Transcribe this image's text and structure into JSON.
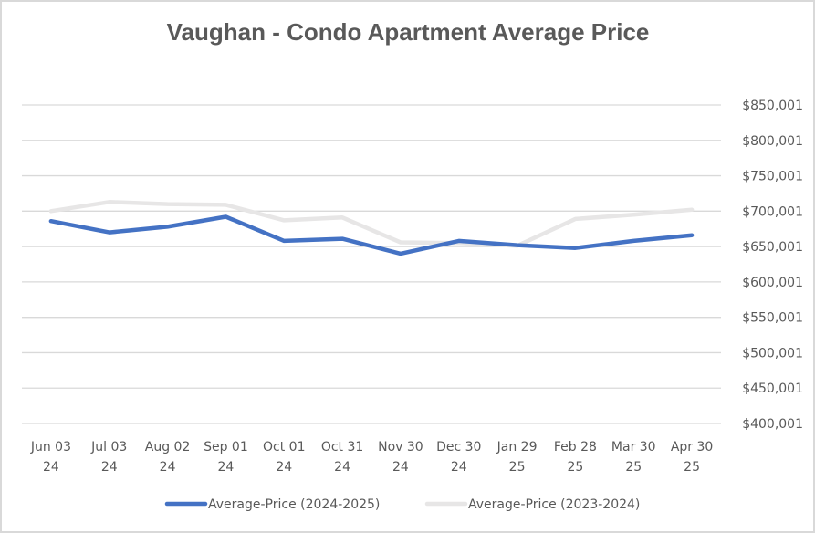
{
  "chart_data": {
    "type": "line",
    "title": "Vaughan - Condo Apartment Average Price",
    "xlabel": "",
    "ylabel": "",
    "categories": [
      [
        "Jun 03",
        "24"
      ],
      [
        "Jul 03",
        "24"
      ],
      [
        "Aug 02",
        "24"
      ],
      [
        "Sep 01",
        "24"
      ],
      [
        "Oct 01",
        "24"
      ],
      [
        "Oct 31",
        "24"
      ],
      [
        "Nov 30",
        "24"
      ],
      [
        "Dec 30",
        "24"
      ],
      [
        "Jan 29",
        "25"
      ],
      [
        "Feb 28",
        "25"
      ],
      [
        "Mar 30",
        "25"
      ],
      [
        "Apr 30",
        "25"
      ]
    ],
    "yticks": [
      "$850,001",
      "$800,001",
      "$750,001",
      "$700,001",
      "$650,001",
      "$600,001",
      "$550,001",
      "$500,001",
      "$450,001",
      "$400,001"
    ],
    "ylim": [
      400001,
      850001
    ],
    "grid": true,
    "legend_position": "bottom",
    "series": [
      {
        "name": "Average-Price (2024-2025)",
        "color": "#4472C4",
        "values": [
          686000,
          670000,
          678000,
          692000,
          658000,
          661000,
          640000,
          658000,
          652000,
          648000,
          658000,
          666000
        ]
      },
      {
        "name": "Average-Price (2023-2024)",
        "color": "#E7E6E6",
        "values": [
          700000,
          713000,
          710000,
          709000,
          687000,
          691000,
          656000,
          655000,
          651000,
          689000,
          695000,
          702000
        ]
      }
    ]
  }
}
